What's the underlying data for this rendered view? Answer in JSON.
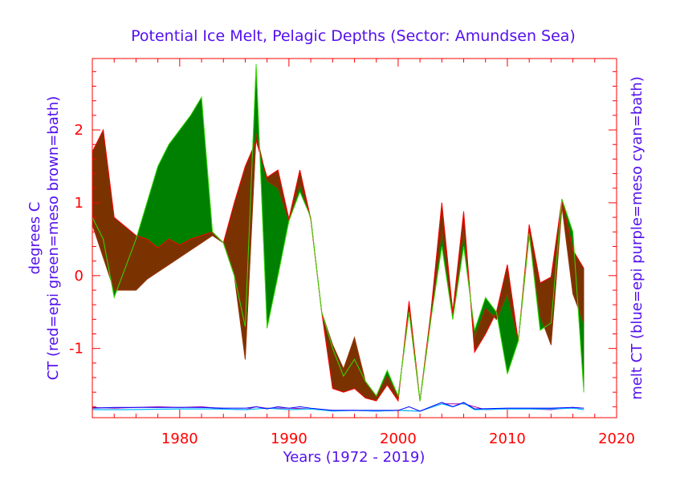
{
  "chart_data": {
    "type": "area",
    "title": "Potential Ice Melt, Pelagic Depths (Sector: Amundsen Sea)",
    "xlabel": "Years (1972 - 2019)",
    "ylabel_left_line1": "degrees C",
    "ylabel_left_line2": "CT (red=epi green=meso brown=bath)",
    "ylabel_right": "melt CT (blue=epi purple=meso cyan=bath)",
    "xlim": [
      1972,
      2020
    ],
    "ylim": [
      -1.95,
      2.98
    ],
    "x_ticks": [
      1980,
      1990,
      2000,
      2010,
      2020
    ],
    "y_ticks": [
      -1,
      0,
      1,
      2
    ],
    "colors": {
      "axis": "#ff0000",
      "title": "#5511ee",
      "epi": "#ff0000",
      "meso": "#008000",
      "bath": "#7a3300",
      "epi_line": "#ff0000",
      "meso_line": "#33dd00",
      "bath_line": "#993300",
      "melt_epi": "#0000ff",
      "melt_meso": "#aa00aa",
      "melt_bath": "#00bbff"
    },
    "series": [
      {
        "name": "epi (red)",
        "x": [
          1972,
          1973,
          1974,
          1976,
          1977,
          1978,
          1979,
          1980,
          1981,
          1982,
          1983,
          1984,
          1985,
          1986,
          1987,
          1988,
          1989,
          1990,
          1991,
          1992,
          1993,
          1994,
          1995,
          1996,
          1997,
          1998,
          1999,
          2000,
          2001,
          2002,
          2003,
          2004,
          2005,
          2006,
          2007,
          2008,
          2009,
          2010,
          2011,
          2012,
          2013,
          2014,
          2015,
          2016,
          2017
        ],
        "values": [
          1.7,
          2.0,
          0.8,
          0.55,
          0.5,
          0.38,
          0.5,
          0.42,
          0.5,
          0.55,
          0.6,
          0.45,
          1.0,
          1.5,
          1.85,
          1.35,
          1.45,
          0.78,
          1.45,
          0.78,
          -0.5,
          -1.55,
          -1.6,
          -1.55,
          -1.68,
          -1.72,
          -1.5,
          -1.72,
          -0.35,
          -1.72,
          -0.5,
          1.0,
          -0.5,
          0.88,
          -1.05,
          -0.8,
          -0.5,
          0.15,
          -0.9,
          0.7,
          -0.1,
          -0.02,
          1.05,
          0.35,
          0.1
        ]
      },
      {
        "name": "meso (green)",
        "x": [
          1972,
          1973,
          1974,
          1976,
          1977,
          1978,
          1979,
          1980,
          1981,
          1982,
          1983,
          1984,
          1985,
          1986,
          1987,
          1988,
          1989,
          1990,
          1991,
          1992,
          1993,
          1994,
          1995,
          1996,
          1997,
          1998,
          1999,
          2000,
          2001,
          2002,
          2003,
          2004,
          2005,
          2006,
          2007,
          2008,
          2009,
          2010,
          2011,
          2012,
          2013,
          2014,
          2015,
          2016,
          2017
        ],
        "values": [
          0.8,
          0.5,
          -0.3,
          0.5,
          1.0,
          1.5,
          1.8,
          2.0,
          2.2,
          2.45,
          0.6,
          0.45,
          0.0,
          -0.7,
          2.9,
          -0.72,
          0.0,
          0.75,
          1.15,
          0.8,
          -0.5,
          -1.0,
          -1.38,
          -1.15,
          -1.45,
          -1.65,
          -1.3,
          -1.65,
          -0.5,
          -1.72,
          -0.6,
          0.4,
          -0.6,
          0.4,
          -0.75,
          -0.3,
          -0.5,
          -1.35,
          -0.9,
          0.58,
          -0.75,
          -0.65,
          1.05,
          0.6,
          -1.6
        ]
      },
      {
        "name": "bath (brown)",
        "x": [
          1972,
          1973,
          1974,
          1976,
          1977,
          1978,
          1979,
          1980,
          1981,
          1982,
          1983,
          1984,
          1985,
          1986,
          1987,
          1988,
          1989,
          1990,
          1991,
          1992,
          1993,
          1994,
          1995,
          1996,
          1997,
          1998,
          1999,
          2000,
          2001,
          2002,
          2003,
          2004,
          2005,
          2006,
          2007,
          2008,
          2009,
          2010,
          2011,
          2012,
          2013,
          2014,
          2015,
          2016,
          2017
        ],
        "values": [
          0.7,
          0.25,
          -0.2,
          -0.2,
          -0.05,
          0.05,
          0.15,
          0.25,
          0.35,
          0.45,
          0.55,
          0.45,
          0.0,
          -1.15,
          1.95,
          1.3,
          1.2,
          0.75,
          1.25,
          0.78,
          -0.5,
          -0.95,
          -1.28,
          -0.85,
          -1.45,
          -1.65,
          -1.38,
          -1.65,
          -0.5,
          -1.72,
          -0.6,
          0.62,
          -0.6,
          0.62,
          -0.85,
          -0.45,
          -0.6,
          -0.25,
          -0.9,
          0.55,
          -0.55,
          -0.95,
          0.95,
          -0.25,
          -0.65
        ]
      },
      {
        "name": "melt epi (blue)",
        "x": [
          1972,
          1974,
          1976,
          1978,
          1980,
          1982,
          1984,
          1986,
          1987,
          1988,
          1989,
          1990,
          1991,
          1992,
          1994,
          1996,
          1998,
          2000,
          2001,
          2002,
          2004,
          2005,
          2006,
          2007,
          2010,
          2012,
          2014,
          2016,
          2017
        ],
        "values": [
          -1.82,
          -1.81,
          -1.81,
          -1.81,
          -1.81,
          -1.81,
          -1.82,
          -1.82,
          -1.8,
          -1.83,
          -1.8,
          -1.82,
          -1.8,
          -1.82,
          -1.85,
          -1.85,
          -1.85,
          -1.85,
          -1.8,
          -1.86,
          -1.74,
          -1.8,
          -1.74,
          -1.83,
          -1.82,
          -1.82,
          -1.82,
          -1.81,
          -1.82
        ]
      },
      {
        "name": "melt meso (purple)",
        "x": [
          1972,
          1974,
          1976,
          1978,
          1980,
          1982,
          1984,
          1986,
          1987,
          1988,
          1990,
          1992,
          1994,
          1996,
          1998,
          2000,
          2002,
          2004,
          2006,
          2008,
          2010,
          2012,
          2014,
          2016,
          2017
        ],
        "values": [
          -1.81,
          -1.82,
          -1.81,
          -1.8,
          -1.81,
          -1.8,
          -1.83,
          -1.84,
          -1.8,
          -1.82,
          -1.82,
          -1.83,
          -1.85,
          -1.85,
          -1.86,
          -1.85,
          -1.86,
          -1.76,
          -1.76,
          -1.84,
          -1.83,
          -1.83,
          -1.84,
          -1.81,
          -1.82
        ]
      },
      {
        "name": "melt bath (cyan)",
        "x": [
          1972,
          1975,
          1980,
          1983,
          1986,
          1988,
          1990,
          1992,
          1994,
          1996,
          1998,
          2000,
          2002,
          2004,
          2005,
          2006,
          2007,
          2010,
          2012,
          2014,
          2016,
          2017
        ],
        "values": [
          -1.84,
          -1.84,
          -1.83,
          -1.83,
          -1.84,
          -1.82,
          -1.84,
          -1.83,
          -1.86,
          -1.85,
          -1.86,
          -1.85,
          -1.86,
          -1.76,
          -1.8,
          -1.75,
          -1.84,
          -1.83,
          -1.83,
          -1.83,
          -1.82,
          -1.84
        ]
      }
    ]
  }
}
